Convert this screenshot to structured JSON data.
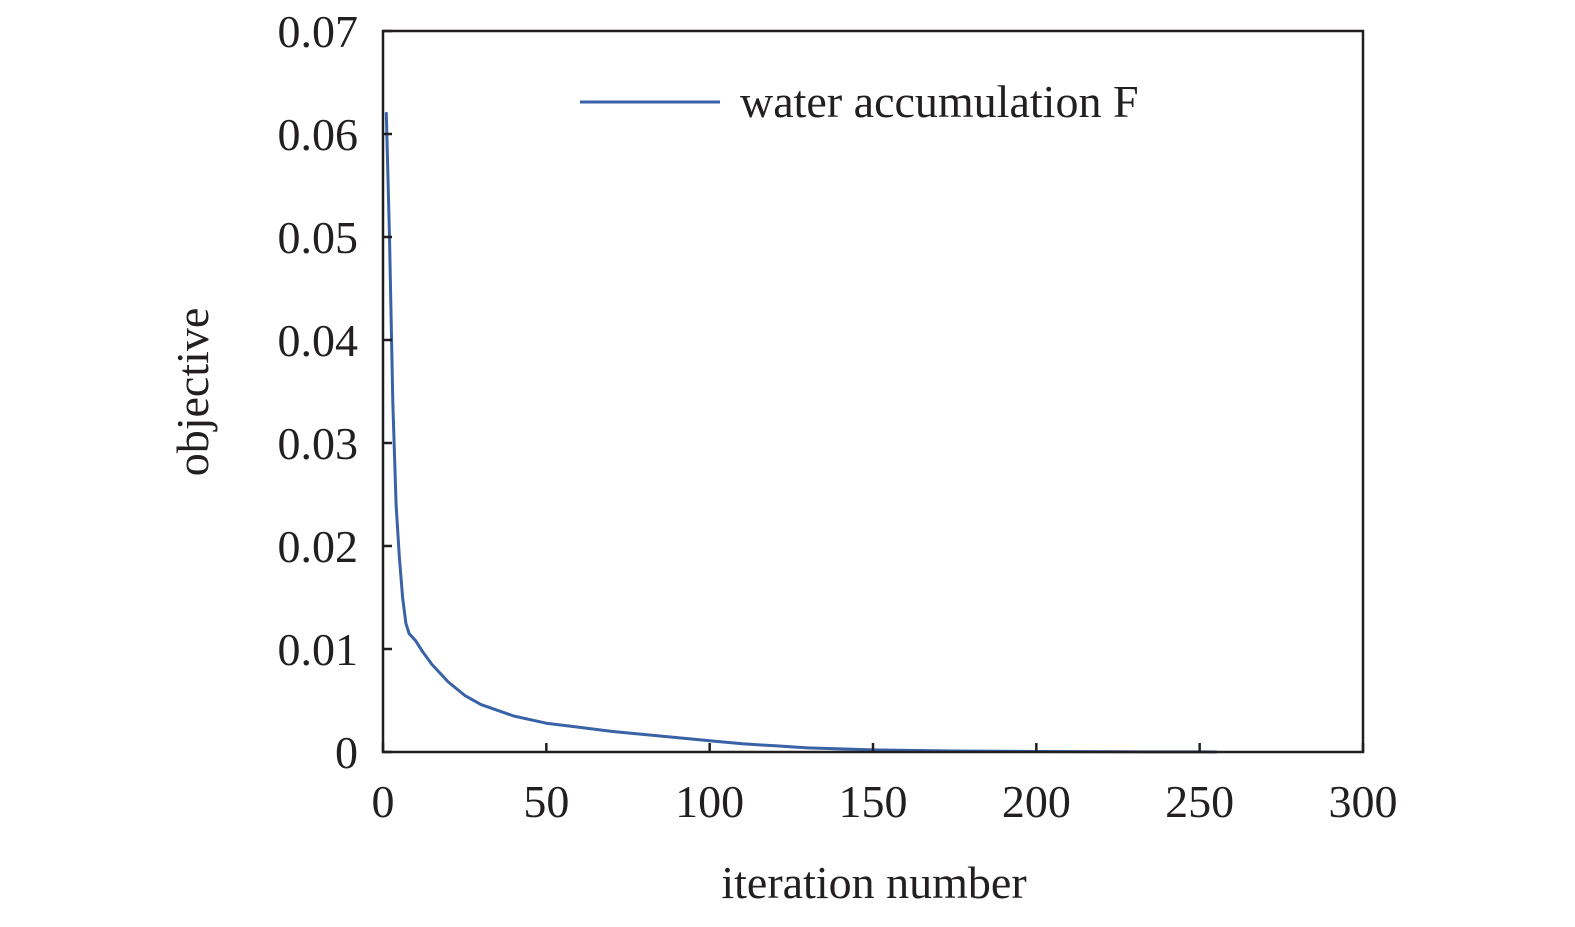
{
  "chart_data": {
    "type": "line",
    "xlabel": "iteration number",
    "ylabel": "objective",
    "xlim": [
      0,
      300
    ],
    "ylim": [
      0,
      0.07
    ],
    "xticks": [
      0,
      50,
      100,
      150,
      200,
      250,
      300
    ],
    "xtick_labels": [
      "0",
      "50",
      "100",
      "150",
      "200",
      "250",
      "300"
    ],
    "yticks": [
      0,
      0.01,
      0.02,
      0.03,
      0.04,
      0.05,
      0.06,
      0.07
    ],
    "ytick_labels": [
      "0",
      "0.01",
      "0.02",
      "0.03",
      "0.04",
      "0.05",
      "0.06",
      "0.07"
    ],
    "grid": false,
    "legend_position": "top-right",
    "series": [
      {
        "name": "water accumulation F",
        "color": "#3a62a7",
        "x": [
          1,
          2,
          3,
          4,
          5,
          6,
          7,
          8,
          10,
          12,
          15,
          20,
          25,
          30,
          40,
          50,
          60,
          70,
          80,
          90,
          100,
          110,
          120,
          130,
          140,
          150,
          175,
          200,
          225,
          250,
          255
        ],
        "y": [
          0.062,
          0.05,
          0.034,
          0.024,
          0.019,
          0.015,
          0.0125,
          0.0115,
          0.0108,
          0.0098,
          0.0085,
          0.0068,
          0.0055,
          0.0046,
          0.0035,
          0.0028,
          0.0024,
          0.002,
          0.0017,
          0.0014,
          0.0011,
          0.0008,
          0.0006,
          0.0004,
          0.0003,
          0.0002,
          0.0001,
          5e-05,
          2e-05,
          1e-05,
          0.0
        ]
      }
    ]
  }
}
